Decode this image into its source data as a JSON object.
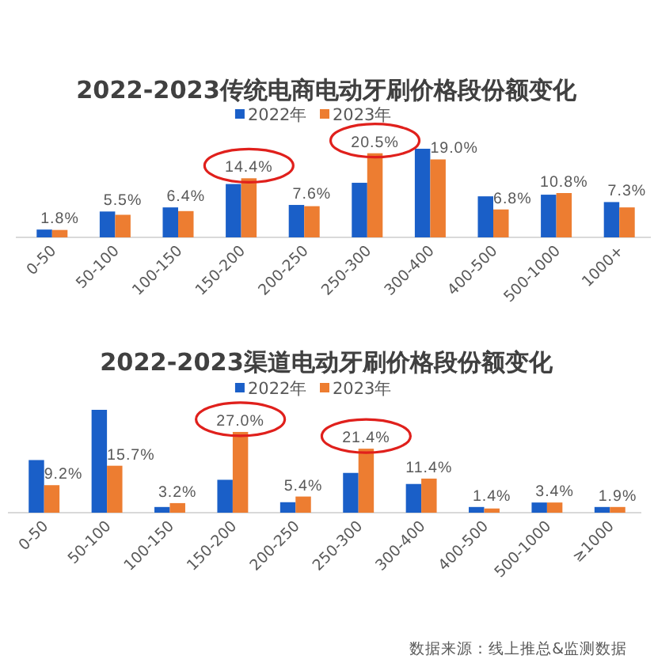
{
  "chart_data": [
    {
      "type": "bar",
      "title": "2022-2023传统电商电动牙刷价格段份额变化",
      "categories": [
        "0-50",
        "50-100",
        "100-150",
        "150-200",
        "200-250",
        "250-300",
        "300-400",
        "400-500",
        "500-1000",
        "1000+"
      ],
      "legend": "top",
      "series": [
        {
          "name": "2022年",
          "color": "#1a5fc8",
          "values": [
            1.9,
            6.3,
            7.3,
            13.0,
            7.9,
            13.3,
            21.6,
            10.0,
            10.4,
            8.6
          ]
        },
        {
          "name": "2023年",
          "color": "#ed7d31",
          "values": [
            1.8,
            5.5,
            6.4,
            14.4,
            7.6,
            20.5,
            19.0,
            6.8,
            10.8,
            7.3
          ],
          "value_labels": [
            "1.8%",
            "5.5%",
            "6.4%",
            "14.4%",
            "7.6%",
            "20.5%",
            "19.0%",
            "6.8%",
            "10.8%",
            "7.3%"
          ]
        }
      ]
    },
    {
      "type": "bar",
      "title": "2022-2023渠道电动牙刷价格段份额变化",
      "categories": [
        "0-50",
        "50-100",
        "100-150",
        "150-200",
        "200-250",
        "250-300",
        "300-400",
        "400-500",
        "500-1000",
        "≥1000"
      ],
      "legend": "top",
      "series": [
        {
          "name": "2022年",
          "color": "#1a5fc8",
          "values": [
            17.6,
            34.4,
            1.9,
            11.0,
            3.5,
            13.3,
            9.6,
            1.9,
            3.4,
            1.9
          ]
        },
        {
          "name": "2023年",
          "color": "#ed7d31",
          "values": [
            9.2,
            15.7,
            3.2,
            27.0,
            5.4,
            21.4,
            11.4,
            1.4,
            3.4,
            1.9
          ],
          "value_labels": [
            "9.2%",
            "15.7%",
            "3.2%",
            "27.0%",
            "5.4%",
            "21.4%",
            "11.4%",
            "1.4%",
            "3.4%",
            "1.9%"
          ]
        }
      ],
      "annotations": [
        "数据来源：线上推总&监测数据"
      ]
    }
  ]
}
